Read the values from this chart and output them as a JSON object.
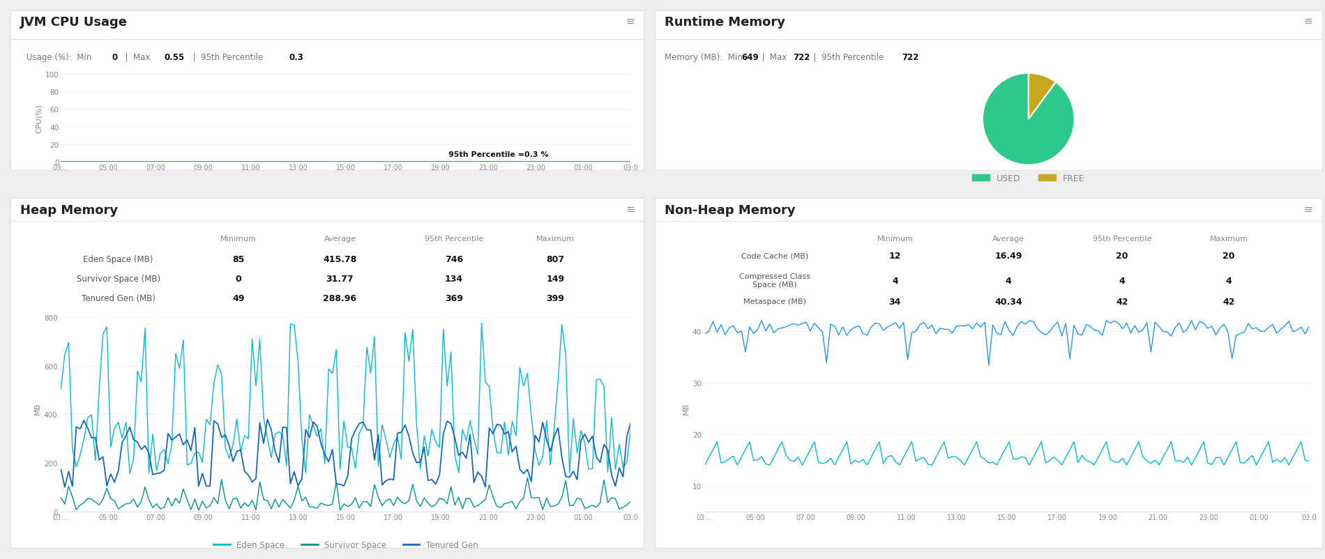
{
  "bg_color": "#eeeeee",
  "panel_bg": "#ffffff",
  "panel_border": "#dddddd",
  "cpu_title": "JVM CPU Usage",
  "cpu_ylabel": "CPU(%)",
  "cpu_yticks": [
    0,
    20,
    40,
    60,
    80,
    100
  ],
  "cpu_ylim": [
    0,
    100
  ],
  "cpu_percentile_label": "95th Percentile =0.3 %",
  "cpu_percentile_val": 0.3,
  "cpu_line_color": "#4caf50",
  "cpu_xticks": [
    "03:...",
    "05:00",
    "07:00",
    "09:00",
    "11:00",
    "13:00",
    "15:00",
    "17:00",
    "19:00",
    "21:00",
    "23:00",
    "01:00",
    "03:0"
  ],
  "rt_title": "Runtime Memory",
  "rt_used": 649,
  "rt_free": 73,
  "rt_colors": [
    "#2dc98a",
    "#c8a820"
  ],
  "rt_labels": [
    "USED",
    "FREE"
  ],
  "heap_title": "Heap Memory",
  "heap_col_headers": [
    "Minimum",
    "Average",
    "95th Percentile",
    "Maximum"
  ],
  "heap_row_labels": [
    "Eden Space (MB)",
    "Survivor Space (MB)",
    "Tenured Gen (MB)"
  ],
  "heap_row_vals": [
    [
      "85",
      "415.78",
      "746",
      "807"
    ],
    [
      "0",
      "31.77",
      "134",
      "149"
    ],
    [
      "49",
      "288.96",
      "369",
      "399"
    ]
  ],
  "heap_ylabel": "MB",
  "heap_yticks": [
    0,
    200,
    400,
    600,
    800
  ],
  "heap_ylim": [
    0,
    850
  ],
  "heap_xticks": [
    "03:...",
    "05:00",
    "07:00",
    "09:00",
    "11:00",
    "13:00",
    "15:00",
    "17:00",
    "19:00",
    "21:00",
    "23:00",
    "01:00",
    "03:0"
  ],
  "heap_eden_color": "#00bcd4",
  "heap_survivor_color": "#009688",
  "heap_tenured_color": "#1565c0",
  "heap_legend": [
    "Eden Space",
    "Survivor Space",
    "Tenured Gen"
  ],
  "nonheap_title": "Non-Heap Memory",
  "nonheap_col_headers": [
    "Minimum",
    "Average",
    "95th Percentile",
    "Maximum"
  ],
  "nonheap_row_labels": [
    "Code Cache (MB)",
    "Compressed Class\nSpace (MB)",
    "Metaspace (MB)"
  ],
  "nonheap_row_vals": [
    [
      "12",
      "16.49",
      "20",
      "20"
    ],
    [
      "4",
      "4",
      "4",
      "4"
    ],
    [
      "34",
      "40.34",
      "42",
      "42"
    ]
  ],
  "nonheap_ylabel": "MB",
  "nonheap_yticks": [
    10,
    20,
    30,
    40
  ],
  "nonheap_ylim": [
    5,
    45
  ],
  "nonheap_xticks": [
    "03:...",
    "05:00",
    "07:00",
    "09:00",
    "11:00",
    "13:00",
    "15:00",
    "17:00",
    "19:00",
    "21:00",
    "23:00",
    "01:00",
    "03:0"
  ],
  "nonheap_codecache_color": "#2196f3",
  "nonheap_metaspace_color": "#00bcd4",
  "nonheap_compclass_color": "#009688",
  "menu_color": "#888888",
  "title_color": "#212121",
  "stat_label_color": "#777777",
  "stat_val_color": "#111111",
  "axis_color": "#cccccc",
  "grid_color": "#eeeeee",
  "tick_color": "#888888",
  "table_header_color": "#888888",
  "table_label_color": "#555555",
  "table_val_color": "#111111",
  "separator_color": "#e0e0e0"
}
